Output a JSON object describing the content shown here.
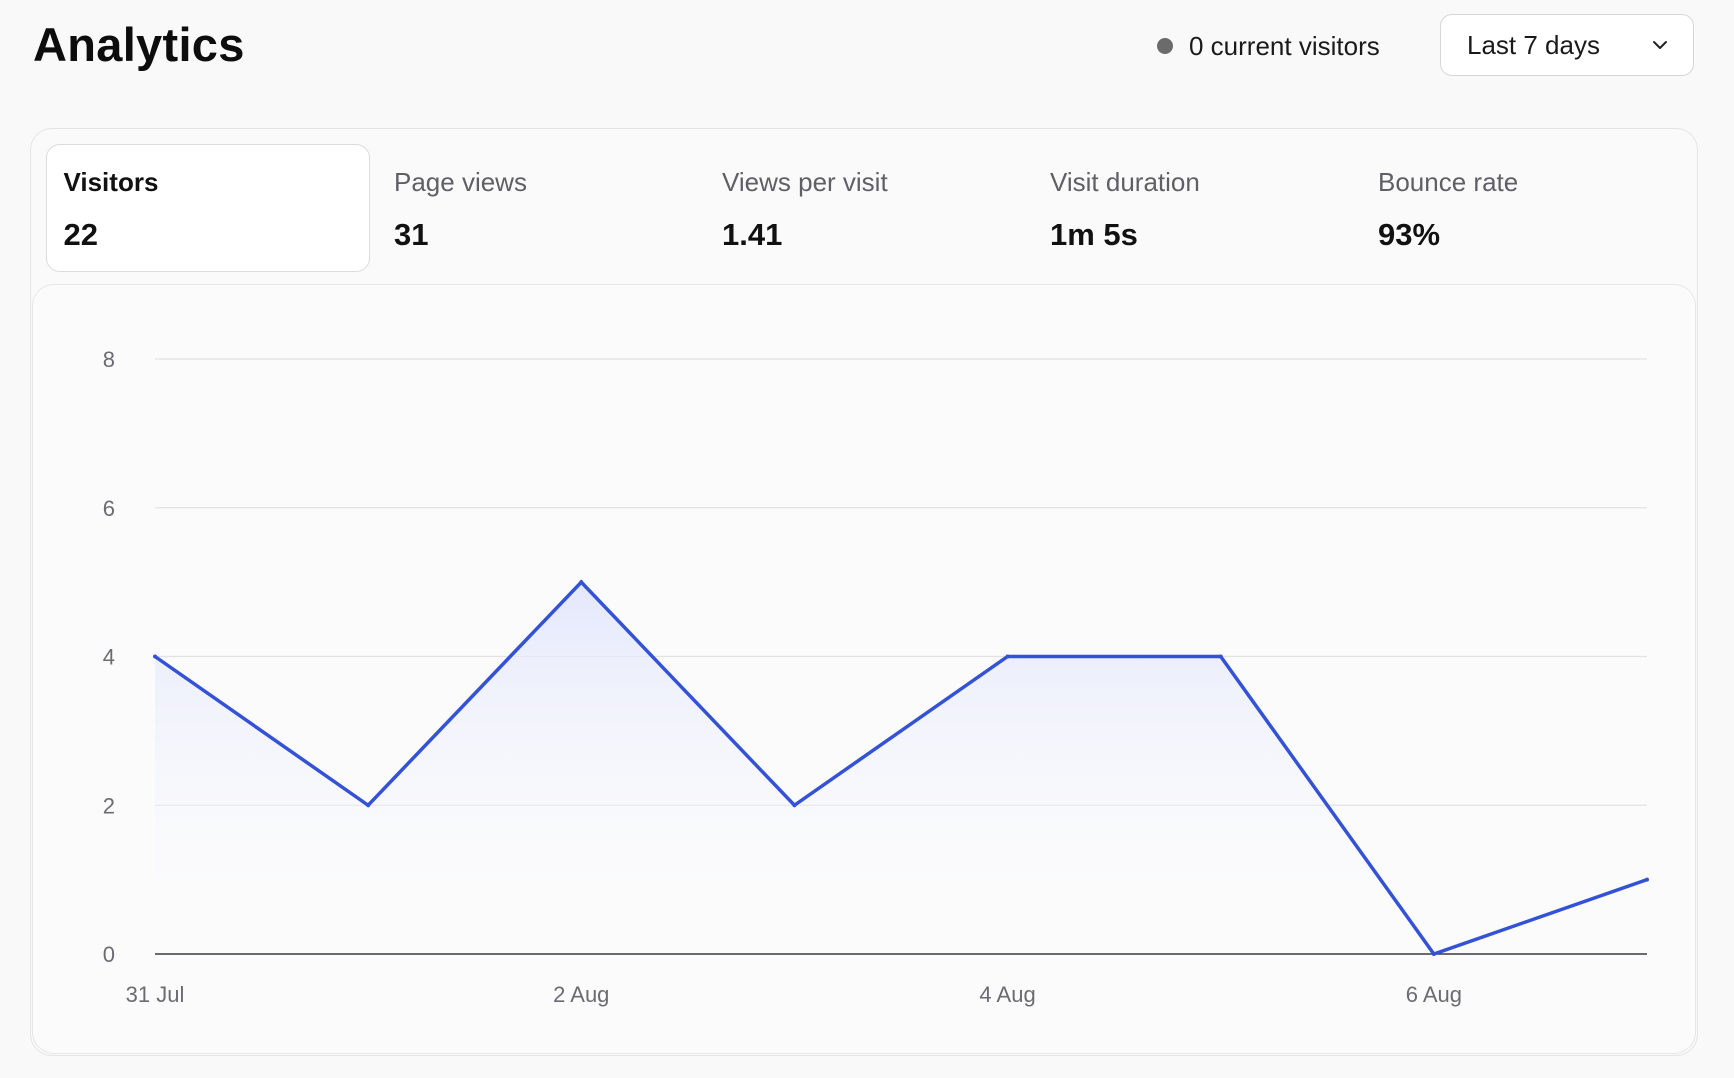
{
  "header": {
    "title": "Analytics",
    "current_visitors": "0 current visitors",
    "date_range": {
      "selected": "Last 7 days",
      "icon": "chevron-down-icon"
    }
  },
  "metrics": [
    {
      "label": "Visitors",
      "value": "22",
      "active": true
    },
    {
      "label": "Page views",
      "value": "31",
      "active": false
    },
    {
      "label": "Views per visit",
      "value": "1.41",
      "active": false
    },
    {
      "label": "Visit duration",
      "value": "1m 5s",
      "active": false
    },
    {
      "label": "Bounce rate",
      "value": "93%",
      "active": false
    }
  ],
  "colors": {
    "line": "#3352d6",
    "fill_top": "#dfe4fb",
    "grid": "#e3e3e6",
    "baseline": "#3a3a3f",
    "status_dot": "#6b6b6b"
  },
  "chart_data": {
    "type": "area",
    "x": [
      "31 Jul",
      "1 Aug",
      "2 Aug",
      "3 Aug",
      "4 Aug",
      "5 Aug",
      "6 Aug",
      "7 Aug"
    ],
    "series": [
      {
        "values": [
          4,
          2,
          5,
          2,
          4,
          4,
          0,
          1
        ]
      }
    ],
    "x_tick_labels": [
      "31 Jul",
      "2 Aug",
      "4 Aug",
      "6 Aug"
    ],
    "y_ticks": [
      0,
      2,
      4,
      6,
      8
    ],
    "ylim": [
      0,
      8
    ],
    "grid": true,
    "title": "",
    "xlabel": "",
    "ylabel": ""
  }
}
